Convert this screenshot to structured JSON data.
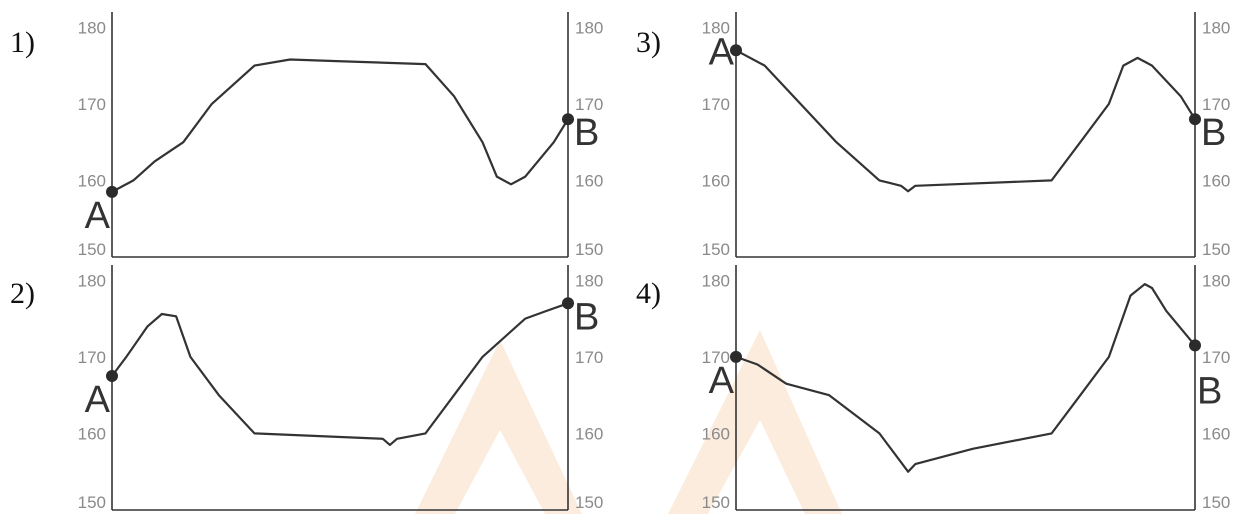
{
  "chart_data": [
    {
      "type": "line",
      "panel_label": "1)",
      "yticks": [
        "180",
        "170",
        "160",
        "150"
      ],
      "ylim": [
        150,
        182
      ],
      "right_ticks": [
        "180",
        "170",
        "160",
        "150"
      ],
      "x": [
        0,
        3,
        6,
        10,
        14,
        20,
        25,
        31,
        44,
        48,
        52,
        54,
        56,
        58,
        62,
        64
      ],
      "y": [
        158.5,
        160,
        162.5,
        165,
        170,
        175,
        175.8,
        175.6,
        175.2,
        171,
        165,
        160.5,
        159.5,
        160.5,
        165,
        168
      ],
      "points": [
        {
          "name": "A",
          "label": "A",
          "x": 0,
          "y": 158.5,
          "label_pos": "below-left"
        },
        {
          "name": "B",
          "label": "B",
          "x": 64,
          "y": 168,
          "label_pos": "right"
        }
      ]
    },
    {
      "type": "line",
      "panel_label": "2)",
      "yticks": [
        "180",
        "170",
        "160",
        "150"
      ],
      "ylim": [
        150,
        182
      ],
      "right_ticks": [
        "180",
        "170",
        "160",
        "150"
      ],
      "x": [
        0,
        2,
        5,
        7,
        9,
        11,
        15,
        20,
        38,
        39,
        40,
        44,
        48,
        52,
        58,
        61,
        64
      ],
      "y": [
        167.5,
        170,
        174,
        175.6,
        175.3,
        170,
        165,
        160,
        159.3,
        158.5,
        159.3,
        160,
        165,
        170,
        175,
        176,
        177
      ],
      "points": [
        {
          "name": "A",
          "label": "A",
          "x": 0,
          "y": 167.5,
          "label_pos": "below-left"
        },
        {
          "name": "B",
          "label": "B",
          "x": 64,
          "y": 177,
          "label_pos": "right"
        }
      ]
    },
    {
      "type": "line",
      "panel_label": "3)",
      "yticks": [
        "180",
        "170",
        "160",
        "150"
      ],
      "ylim": [
        150,
        182
      ],
      "right_ticks": [
        "180",
        "170",
        "160",
        "150"
      ],
      "x": [
        0,
        4,
        9,
        14,
        20,
        23,
        24,
        25,
        44,
        48,
        52,
        54,
        56,
        58,
        62,
        64
      ],
      "y": [
        177,
        175,
        170,
        165,
        160,
        159.3,
        158.6,
        159.3,
        160,
        165,
        170,
        175,
        176,
        175,
        171,
        168
      ],
      "points": [
        {
          "name": "A",
          "label": "A",
          "x": 0,
          "y": 177,
          "label_pos": "left"
        },
        {
          "name": "B",
          "label": "B",
          "x": 64,
          "y": 168,
          "label_pos": "right"
        }
      ]
    },
    {
      "type": "line",
      "panel_label": "4)",
      "yticks": [
        "180",
        "170",
        "160",
        "150"
      ],
      "ylim": [
        150,
        182
      ],
      "right_ticks": [
        "180",
        "170",
        "160",
        "150"
      ],
      "x": [
        0,
        3,
        7,
        13,
        20,
        24,
        25,
        33,
        44,
        48,
        52,
        55,
        57,
        58,
        60,
        64
      ],
      "y": [
        170,
        169,
        166.5,
        165,
        160,
        155,
        156,
        158,
        160,
        165,
        170,
        178,
        179.5,
        179,
        176,
        171.5
      ],
      "points": [
        {
          "name": "A",
          "label": "A",
          "x": 0,
          "y": 170,
          "label_pos": "below-left"
        },
        {
          "name": "B",
          "label": "B",
          "x": 64,
          "y": 171.5,
          "label_pos": "below-right"
        }
      ]
    }
  ]
}
